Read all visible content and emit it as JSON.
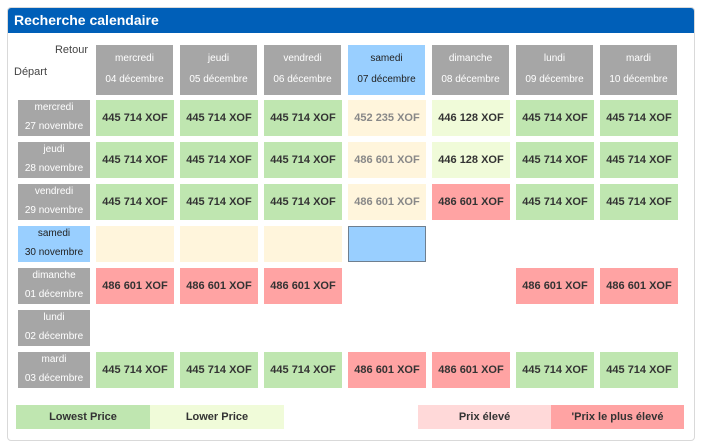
{
  "title": "Recherche calendaire",
  "corner": {
    "retour": "Retour",
    "depart": "Départ"
  },
  "return_dates": [
    {
      "day": "mercredi",
      "date": "04 décembre",
      "selected": false
    },
    {
      "day": "jeudi",
      "date": "05 décembre",
      "selected": false
    },
    {
      "day": "vendredi",
      "date": "06 décembre",
      "selected": false
    },
    {
      "day": "samedi",
      "date": "07 décembre",
      "selected": true
    },
    {
      "day": "dimanche",
      "date": "08 décembre",
      "selected": false
    },
    {
      "day": "lundi",
      "date": "09 décembre",
      "selected": false
    },
    {
      "day": "mardi",
      "date": "10 décembre",
      "selected": false
    }
  ],
  "departure_dates": [
    {
      "day": "mercredi",
      "date": "27 novembre",
      "selected": false
    },
    {
      "day": "jeudi",
      "date": "28 novembre",
      "selected": false
    },
    {
      "day": "vendredi",
      "date": "29 novembre",
      "selected": false
    },
    {
      "day": "samedi",
      "date": "30 novembre",
      "selected": true
    },
    {
      "day": "dimanche",
      "date": "01 décembre",
      "selected": false
    },
    {
      "day": "lundi",
      "date": "02 décembre",
      "selected": false
    },
    {
      "day": "mardi",
      "date": "03 décembre",
      "selected": false
    }
  ],
  "grid": [
    [
      {
        "price": "445 714 XOF",
        "level": "low"
      },
      {
        "price": "445 714 XOF",
        "level": "low"
      },
      {
        "price": "445 714 XOF",
        "level": "low"
      },
      {
        "price": "452 235 XOF",
        "level": "mid"
      },
      {
        "price": "446 128 XOF",
        "level": "lower"
      },
      {
        "price": "445 714 XOF",
        "level": "low"
      },
      {
        "price": "445 714 XOF",
        "level": "low"
      }
    ],
    [
      {
        "price": "445 714 XOF",
        "level": "low"
      },
      {
        "price": "445 714 XOF",
        "level": "low"
      },
      {
        "price": "445 714 XOF",
        "level": "low"
      },
      {
        "price": "486 601 XOF",
        "level": "mid"
      },
      {
        "price": "446 128 XOF",
        "level": "lower"
      },
      {
        "price": "445 714 XOF",
        "level": "low"
      },
      {
        "price": "445 714 XOF",
        "level": "low"
      }
    ],
    [
      {
        "price": "445 714 XOF",
        "level": "low"
      },
      {
        "price": "445 714 XOF",
        "level": "low"
      },
      {
        "price": "445 714 XOF",
        "level": "low"
      },
      {
        "price": "486 601 XOF",
        "level": "mid"
      },
      {
        "price": "486 601 XOF",
        "level": "high"
      },
      {
        "price": "445 714 XOF",
        "level": "low"
      },
      {
        "price": "445 714 XOF",
        "level": "low"
      }
    ],
    [
      {
        "price": "",
        "level": "mid"
      },
      {
        "price": "",
        "level": "mid"
      },
      {
        "price": "",
        "level": "mid"
      },
      {
        "price": "",
        "level": "blue"
      },
      {
        "price": "",
        "level": "none"
      },
      {
        "price": "",
        "level": "none"
      },
      {
        "price": "",
        "level": "none"
      }
    ],
    [
      {
        "price": "486 601 XOF",
        "level": "high"
      },
      {
        "price": "486 601 XOF",
        "level": "high"
      },
      {
        "price": "486 601 XOF",
        "level": "high"
      },
      {
        "price": "",
        "level": "none"
      },
      {
        "price": "",
        "level": "none"
      },
      {
        "price": "486 601 XOF",
        "level": "high"
      },
      {
        "price": "486 601 XOF",
        "level": "high"
      }
    ],
    [
      {
        "price": "",
        "level": "none"
      },
      {
        "price": "",
        "level": "none"
      },
      {
        "price": "",
        "level": "none"
      },
      {
        "price": "",
        "level": "none"
      },
      {
        "price": "",
        "level": "none"
      },
      {
        "price": "",
        "level": "none"
      },
      {
        "price": "",
        "level": "none"
      }
    ],
    [
      {
        "price": "445 714 XOF",
        "level": "low"
      },
      {
        "price": "445 714 XOF",
        "level": "low"
      },
      {
        "price": "445 714 XOF",
        "level": "low"
      },
      {
        "price": "486 601 XOF",
        "level": "high"
      },
      {
        "price": "486 601 XOF",
        "level": "high"
      },
      {
        "price": "445 714 XOF",
        "level": "low"
      },
      {
        "price": "445 714 XOF",
        "level": "low"
      }
    ]
  ],
  "legend": {
    "lowest": "Lowest Price",
    "lower": "Lower Price",
    "high": "Prix élevé",
    "highest": "'Prix le plus élevé"
  },
  "colors": {
    "title_bar": "#005fb8",
    "lowest": "#bfe6b0",
    "lower": "#f0fbd9",
    "mid": "#fff5dc",
    "high": "#ffa3a3",
    "high_legend": "#ffd9d9",
    "selected": "#99cfff",
    "header_gray": "#a6a6a6"
  }
}
